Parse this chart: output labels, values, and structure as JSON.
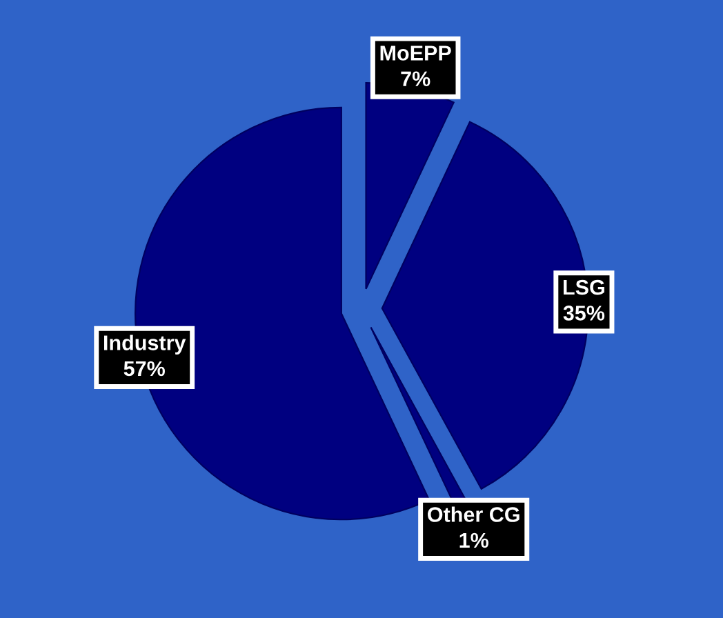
{
  "chart_data": {
    "type": "pie",
    "categories": [
      "MoEPP",
      "LSG",
      "Other CG",
      "Industry"
    ],
    "values": [
      7,
      35,
      1,
      57
    ],
    "value_labels": [
      "7%",
      "35%",
      "1%",
      "57%"
    ],
    "colors": [
      "#000080",
      "#000080",
      "#000080",
      "#000080"
    ],
    "legend": false
  }
}
